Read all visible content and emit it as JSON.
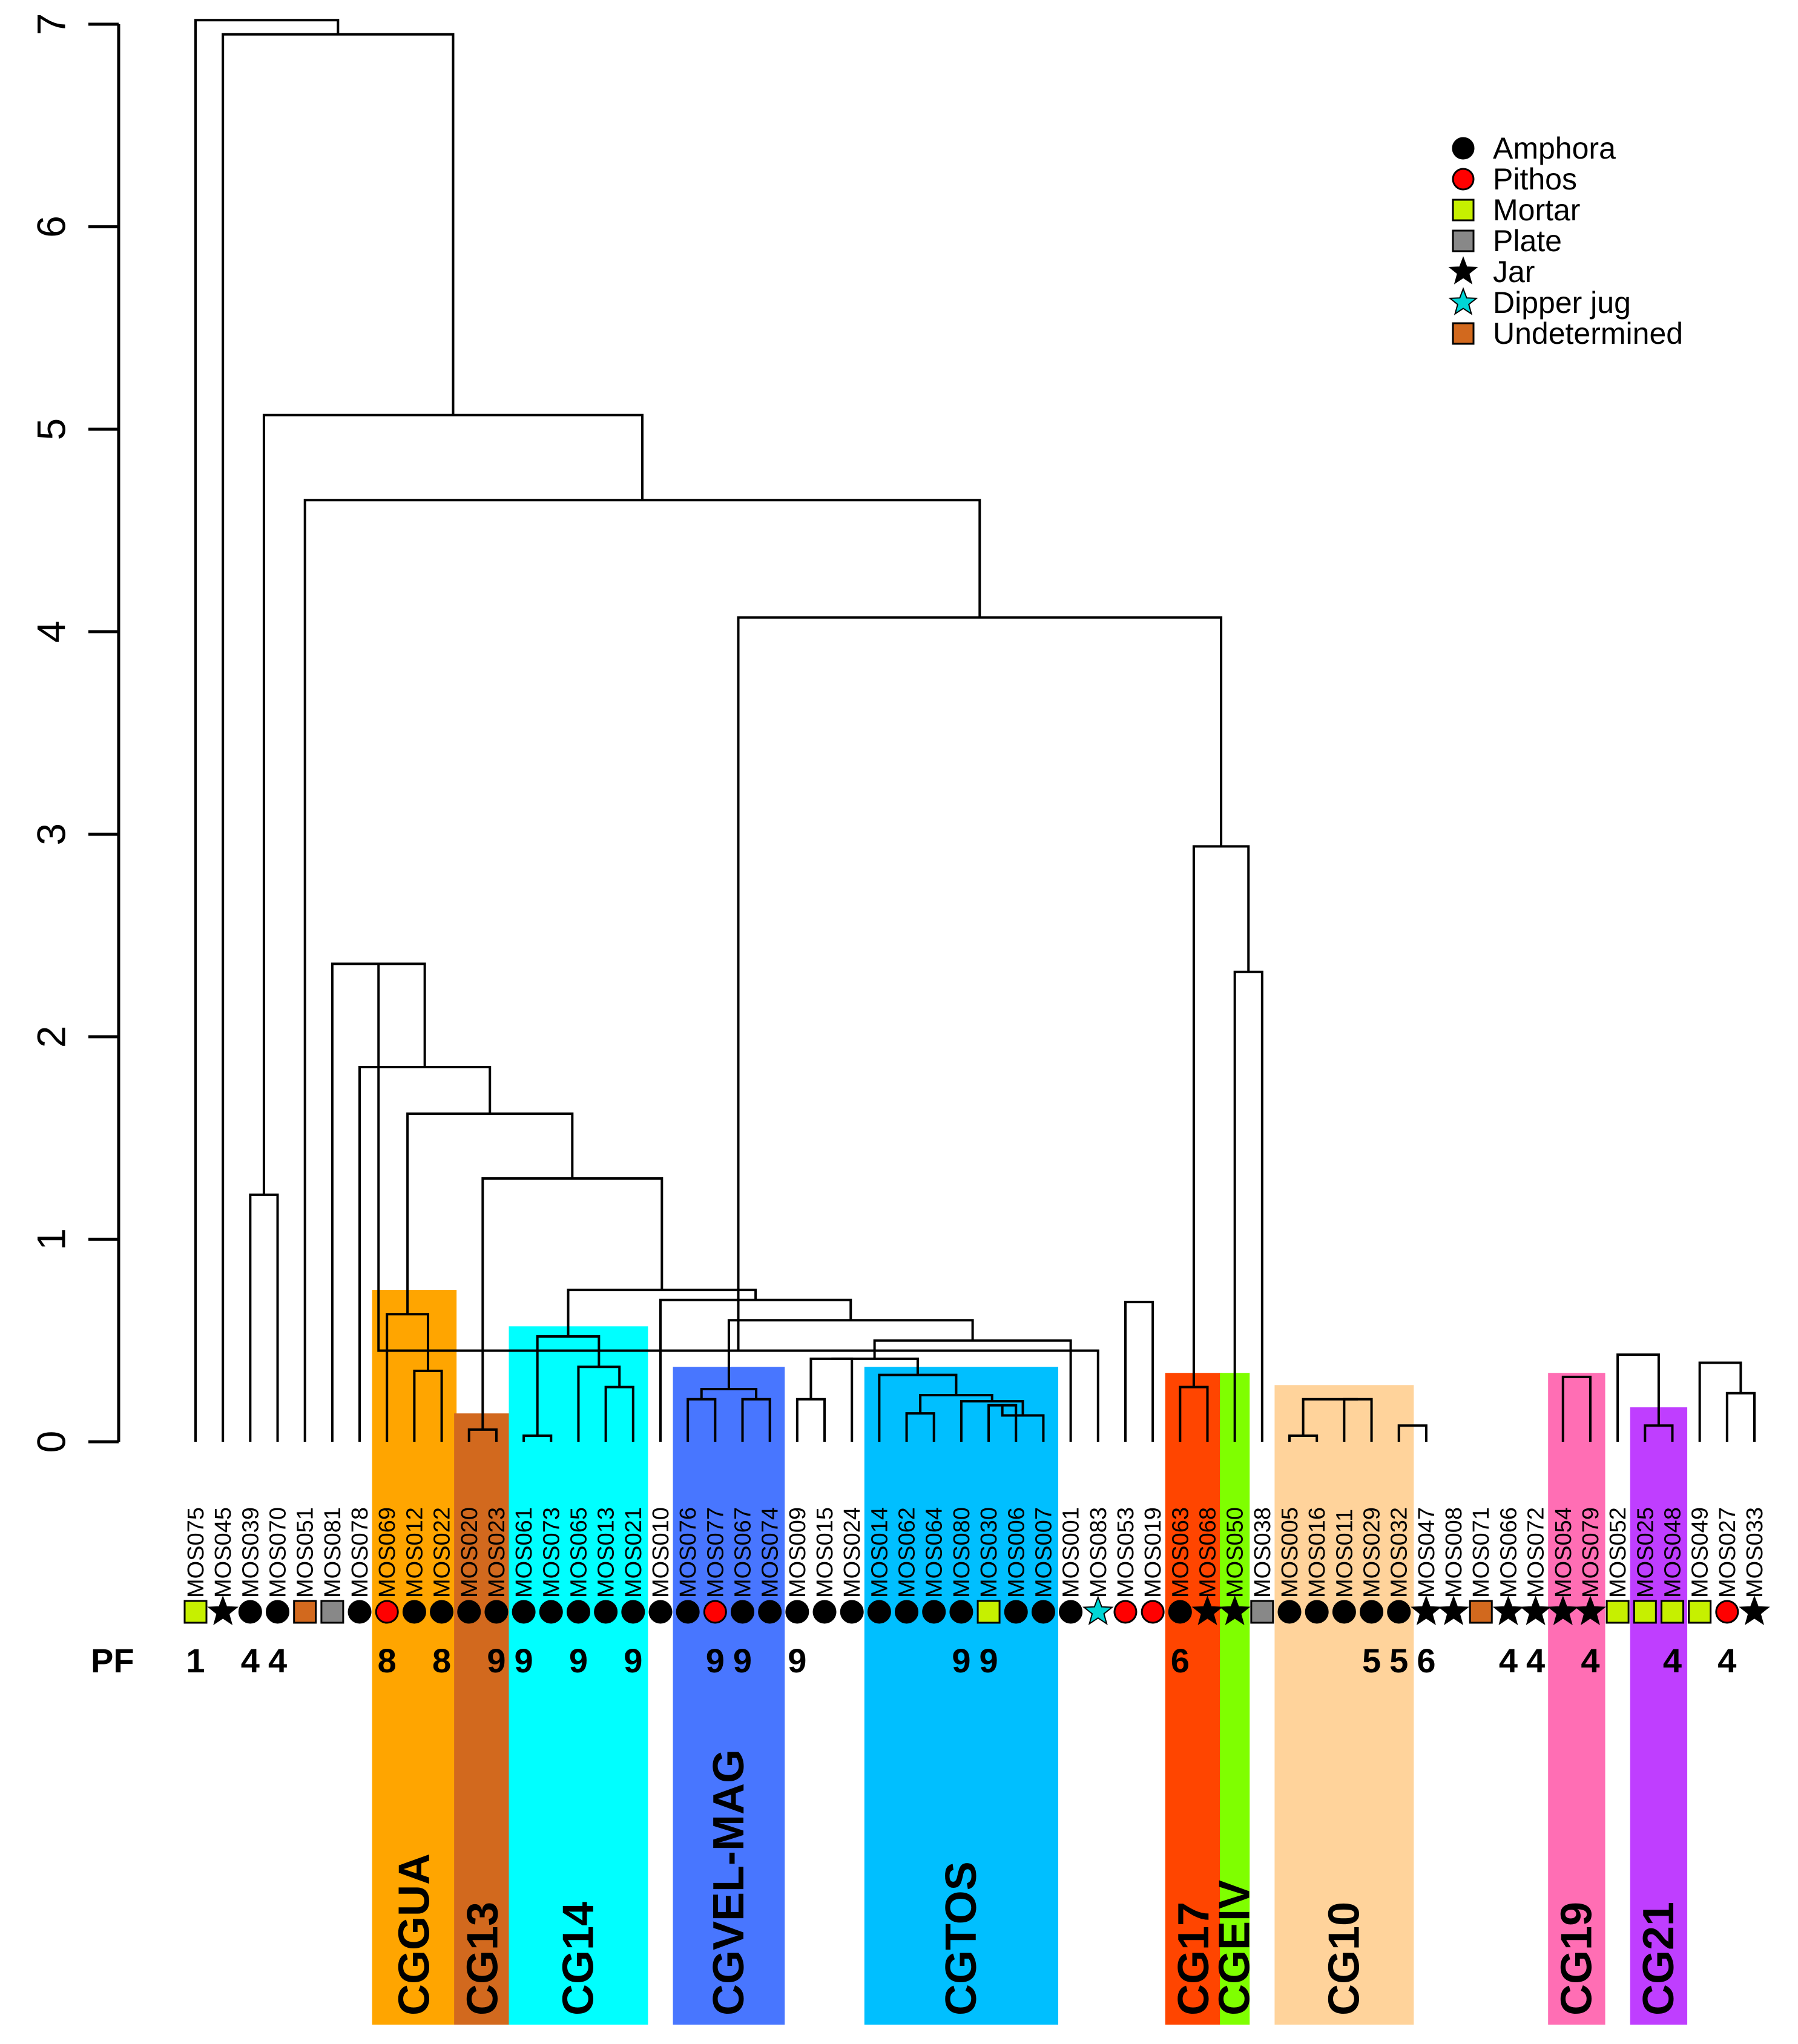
{
  "chart_data": {
    "type": "dendrogram",
    "title": "",
    "ylabel": "",
    "ylim": [
      0,
      7
    ],
    "y_ticks": [
      "0",
      "1",
      "2",
      "3",
      "4",
      "5",
      "6",
      "7"
    ],
    "leaves": [
      "MOS075",
      "MOS045",
      "MOS039",
      "MOS070",
      "MOS051",
      "MOS081",
      "MOS078",
      "MOS069",
      "MOS012",
      "MOS022",
      "MOS020",
      "MOS023",
      "MOS061",
      "MOS073",
      "MOS065",
      "MOS013",
      "MOS021",
      "MOS010",
      "MOS076",
      "MOS077",
      "MOS067",
      "MOS074",
      "MOS009",
      "MOS015",
      "MOS024",
      "MOS014",
      "MOS062",
      "MOS064",
      "MOS080",
      "MOS030",
      "MOS006",
      "MOS007",
      "MOS001",
      "MOS083",
      "MOS053",
      "MOS019",
      "MOS063",
      "MOS068",
      "MOS050",
      "MOS038",
      "MOS005",
      "MOS016",
      "MOS011",
      "MOS029",
      "MOS032",
      "MOS047",
      "MOS008",
      "MOS071",
      "MOS066",
      "MOS072",
      "MOS054",
      "MOS079",
      "MOS052",
      "MOS025",
      "MOS048",
      "MOS049",
      "MOS027",
      "MOS033"
    ],
    "leaf_types": [
      "Mortar",
      "Jar",
      "Amphora",
      "Amphora",
      "Undetermined",
      "Plate",
      "Amphora",
      "Pithos",
      "Amphora",
      "Amphora",
      "Amphora",
      "Amphora",
      "Amphora",
      "Amphora",
      "Amphora",
      "Amphora",
      "Amphora",
      "Amphora",
      "Amphora",
      "Pithos",
      "Amphora",
      "Amphora",
      "Amphora",
      "Amphora",
      "Amphora",
      "Amphora",
      "Amphora",
      "Amphora",
      "Amphora",
      "Mortar",
      "Amphora",
      "Amphora",
      "Amphora",
      "Dipper jug",
      "Pithos",
      "Pithos",
      "Amphora",
      "Jar",
      "Jar",
      "Plate",
      "Amphora",
      "Amphora",
      "Amphora",
      "Amphora",
      "Amphora",
      "Jar",
      "Jar",
      "Undetermined",
      "Jar",
      "Jar",
      "Jar",
      "Jar",
      "Mortar",
      "Mortar",
      "Mortar",
      "Mortar",
      "Pithos",
      "Jar"
    ],
    "merges": [
      {
        "a": "MOS030",
        "b": "MOS006",
        "h": 0.18
      },
      {
        "a": "MOS063",
        "b": "MOS068",
        "h": 0.27
      },
      {
        "a": "MOS005",
        "b": "MOS016",
        "h": 0.03
      },
      {
        "a": "MOS011",
        "b": "MOS029",
        "h": 0.21
      },
      {
        "a": "MOS032",
        "b": "MOS047",
        "h": 0.08
      },
      {
        "a": "MOS054",
        "b": "MOS079",
        "h": 0.32
      },
      {
        "a": "MOS025",
        "b": "MOS048",
        "h": 0.08
      },
      {
        "a": "MOS027",
        "b": "MOS033",
        "h": 0.24
      },
      {
        "a": "MOS009",
        "b": "MOS015",
        "h": 0.21
      },
      {
        "a": "MOS012",
        "b": "MOS022",
        "h": 0.35
      },
      {
        "a": "MOS020",
        "b": "MOS023",
        "h": 0.06
      },
      {
        "a": "MOS061",
        "b": "MOS073",
        "h": 0.03
      },
      {
        "a": "MOS013",
        "b": "MOS021",
        "h": 0.27
      },
      {
        "a": "MOS065",
        "b": "MOS013",
        "h": 0.37
      },
      {
        "a": "MOS061",
        "b": "MOS065",
        "h": 0.52
      },
      {
        "a": "MOS076",
        "b": "MOS077",
        "h": 0.21
      },
      {
        "a": "MOS067",
        "b": "MOS074",
        "h": 0.21
      },
      {
        "a": "MOS076",
        "b": "MOS067",
        "h": 0.26
      },
      {
        "a": "MOS062",
        "b": "MOS064",
        "h": 0.14
      },
      {
        "a": "MOS030",
        "b": "MOS007",
        "h": 0.13
      },
      {
        "a": "MOS080",
        "b": "MOS030",
        "h": 0.2
      },
      {
        "a": "MOS062",
        "b": "MOS080",
        "h": 0.23
      },
      {
        "a": "MOS014",
        "b": "MOS062",
        "h": 0.33
      },
      {
        "a": "MOS009",
        "b": "MOS024",
        "h": 0.41
      },
      {
        "a": "MOS009",
        "b": "MOS014",
        "h": 0.41
      },
      {
        "a": "MOS009",
        "b": "MOS001",
        "h": 0.5
      },
      {
        "a": "MOS076",
        "b": "MOS009",
        "h": 0.6
      },
      {
        "a": "MOS010",
        "b": "MOS076",
        "h": 0.7
      },
      {
        "a": "MOS061",
        "b": "MOS010",
        "h": 0.75
      },
      {
        "a": "MOS020",
        "b": "MOS061",
        "h": 1.3
      },
      {
        "a": "MOS069",
        "b": "MOS012",
        "h": 0.63
      },
      {
        "a": "MOS069",
        "b": "MOS020",
        "h": 1.62
      },
      {
        "a": "MOS078",
        "b": "MOS069",
        "h": 1.85
      },
      {
        "a": "MOS081",
        "b": "MOS078",
        "h": 2.36
      },
      {
        "a": "MOS039",
        "b": "MOS070",
        "h": 1.22
      },
      {
        "a": "MOS053",
        "b": "MOS019",
        "h": 0.69
      },
      {
        "a": "MOS001",
        "b": "MOS083",
        "h": 0.45
      },
      {
        "a": "MOS005",
        "b": "MOS011",
        "h": 0.21
      },
      {
        "a": "MOS052",
        "b": "MOS025",
        "h": 0.43
      },
      {
        "a": "MOS049",
        "b": "MOS027",
        "h": 0.39
      },
      {
        "a": "MOS050",
        "b": "MOS038",
        "h": 2.32
      },
      {
        "a": "MOS063",
        "b": "MOS050",
        "h": 2.94
      },
      {
        "a": "MOS081",
        "b": "MOS063",
        "h": 4.07
      },
      {
        "a": "MOS051",
        "b": "MOS081",
        "h": 4.65
      },
      {
        "a": "MOS039",
        "b": "MOS051",
        "h": 5.07
      },
      {
        "a": "MOS045",
        "b": "MOS039",
        "h": 6.95
      },
      {
        "a": "MOS075",
        "b": "MOS045",
        "h": 7.02
      }
    ],
    "pf_labels": [
      {
        "after": "MOS075",
        "text": "1"
      },
      {
        "after": "MOS039",
        "text": "4"
      },
      {
        "after": "MOS070",
        "text": "4"
      },
      {
        "after": "MOS069",
        "text": "8"
      },
      {
        "after": "MOS022",
        "text": "8"
      },
      {
        "after": "MOS023",
        "text": "9"
      },
      {
        "after": "MOS061",
        "text": "9"
      },
      {
        "after": "MOS065",
        "text": "9"
      },
      {
        "after": "MOS021",
        "text": "9"
      },
      {
        "after": "MOS077",
        "text": "9"
      },
      {
        "after": "MOS067",
        "text": "9"
      },
      {
        "after": "MOS009",
        "text": "9"
      },
      {
        "after": "MOS080",
        "text": "9"
      },
      {
        "after": "MOS030",
        "text": "9"
      },
      {
        "after": "MOS063",
        "text": "6"
      },
      {
        "after": "MOS029",
        "text": "5"
      },
      {
        "after": "MOS032",
        "text": "5"
      },
      {
        "after": "MOS047",
        "text": "6"
      },
      {
        "after": "MOS066",
        "text": "4"
      },
      {
        "after": "MOS072",
        "text": "4"
      },
      {
        "after": "MOS079",
        "text": "4"
      },
      {
        "after": "MOS048",
        "text": "4"
      },
      {
        "after": "MOS027",
        "text": "4"
      }
    ],
    "groups": [
      {
        "name": "CGGUA",
        "first": "MOS069",
        "last": "MOS022",
        "top": 0.75,
        "color": "#FFA500"
      },
      {
        "name": "CG13",
        "first": "MOS020",
        "last": "MOS023",
        "top": 0.14,
        "color": "#D2691E"
      },
      {
        "name": "CG14",
        "first": "MOS061",
        "last": "MOS021",
        "top": 0.57,
        "color": "#00FFFF"
      },
      {
        "name": "CGVEL-MAG",
        "first": "MOS076",
        "last": "MOS074",
        "top": 0.37,
        "color": "#4876FF"
      },
      {
        "name": "CGTOS",
        "first": "MOS014",
        "last": "MOS007",
        "top": 0.37,
        "color": "#00BFFF"
      },
      {
        "name": "CG17",
        "first": "MOS063",
        "last": "MOS068",
        "top": 0.34,
        "color": "#FF4500"
      },
      {
        "name": "CGEIV",
        "first": "MOS050",
        "last": "MOS050",
        "top": 0.34,
        "color": "#7FFF00"
      },
      {
        "name": "CG10",
        "first": "MOS005",
        "last": "MOS032",
        "top": 0.28,
        "color": "#FFD39B"
      },
      {
        "name": "CG19",
        "first": "MOS054",
        "last": "MOS079",
        "top": 0.34,
        "color": "#FF6EB4"
      },
      {
        "name": "CG21",
        "first": "MOS025",
        "last": "MOS048",
        "top": 0.17,
        "color": "#BF3EFF"
      }
    ],
    "pf_axis_label": "PF",
    "legend": [
      {
        "label": "Amphora",
        "shape": "circle",
        "color": "#000000"
      },
      {
        "label": "Pithos",
        "shape": "circle",
        "color": "#FF0000"
      },
      {
        "label": "Mortar",
        "shape": "square",
        "color": "#C6F000"
      },
      {
        "label": "Plate",
        "shape": "square",
        "color": "#888888"
      },
      {
        "label": "Jar",
        "shape": "star",
        "color": "#000000"
      },
      {
        "label": "Dipper jug",
        "shape": "star",
        "color": "#00D5D5"
      },
      {
        "label": "Undetermined",
        "shape": "square",
        "color": "#D2691E"
      }
    ]
  }
}
